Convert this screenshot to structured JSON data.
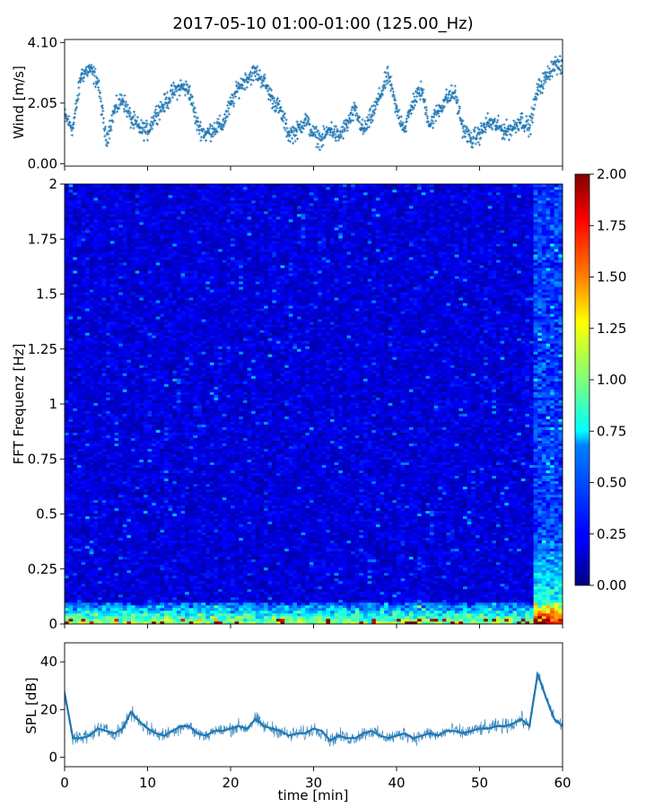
{
  "figure_title": "2017-05-10 01:00-01:00 (125.00_Hz)",
  "colors": {
    "series": "#1f77b4",
    "colormap": "jet",
    "axes": "#000000",
    "background": "#ffffff"
  },
  "chart_data": [
    {
      "type": "scatter",
      "panel": "wind",
      "ylabel": "Wind [m/s]",
      "xlim": [
        0,
        60
      ],
      "ylim": [
        -0.08,
        4.2
      ],
      "yticks": [
        0.0,
        2.05,
        4.1
      ],
      "ytick_labels": [
        "0.00",
        "2.05",
        "4.10"
      ],
      "marker": "+",
      "series": [
        {
          "x": [
            0,
            1,
            2,
            3,
            4,
            5,
            6,
            7,
            8,
            9,
            10,
            11,
            12,
            13,
            14,
            15,
            16,
            17,
            18,
            19,
            20,
            21,
            22,
            23,
            24,
            25,
            26,
            27,
            28,
            29,
            30,
            31,
            32,
            33,
            34,
            35,
            36,
            37,
            38,
            39,
            40,
            41,
            42,
            43,
            44,
            45,
            46,
            47,
            48,
            49,
            50,
            51,
            52,
            53,
            54,
            55,
            56,
            57,
            58,
            59,
            60
          ],
          "values": [
            1.6,
            1.2,
            3.0,
            3.2,
            2.8,
            0.8,
            1.8,
            2.2,
            1.5,
            1.2,
            1.1,
            1.7,
            2.0,
            2.4,
            2.6,
            2.5,
            1.3,
            1.0,
            1.2,
            1.3,
            2.0,
            2.6,
            2.9,
            3.1,
            2.8,
            2.2,
            1.8,
            1.0,
            1.1,
            1.5,
            1.0,
            0.8,
            1.2,
            0.9,
            1.3,
            1.8,
            1.1,
            1.6,
            2.3,
            3.0,
            1.8,
            1.2,
            2.1,
            2.5,
            1.3,
            1.8,
            2.2,
            2.4,
            1.2,
            0.8,
            1.0,
            1.4,
            1.3,
            1.1,
            1.2,
            1.5,
            1.2,
            2.5,
            2.9,
            3.4,
            3.2
          ]
        }
      ]
    },
    {
      "type": "heatmap",
      "panel": "spectrogram",
      "ylabel": "FFT Frequenz [Hz]",
      "xlim": [
        0,
        60
      ],
      "ylim": [
        0,
        2
      ],
      "yticks": [
        0,
        0.25,
        0.5,
        0.75,
        1,
        1.25,
        1.5,
        1.75,
        2
      ],
      "ytick_labels": [
        "0",
        "0.25",
        "0.5",
        "0.75",
        "1",
        "1.25",
        "1.5",
        "1.75",
        "2"
      ],
      "colorbar": {
        "range": [
          0.0,
          2.0
        ],
        "ticks": [
          0.0,
          0.25,
          0.5,
          0.75,
          1.0,
          1.25,
          1.5,
          1.75,
          2.0
        ],
        "tick_labels": [
          "0.00",
          "0.25",
          "0.50",
          "0.75",
          "1.00",
          "1.25",
          "1.50",
          "1.75",
          "2.00"
        ]
      },
      "background_level": 0.18,
      "low_frequency_band_level": 0.7,
      "high_energy_columns_minutes": [
        57,
        58,
        59,
        60
      ]
    },
    {
      "type": "line",
      "panel": "spl",
      "ylabel": "SPL [dB]",
      "xlabel": "time [min]",
      "xlim": [
        0,
        60
      ],
      "ylim": [
        -4,
        48
      ],
      "yticks": [
        0,
        20,
        40
      ],
      "ytick_labels": [
        "0",
        "20",
        "40"
      ],
      "xticks": [
        0,
        10,
        20,
        30,
        40,
        50,
        60
      ],
      "xtick_labels": [
        "0",
        "10",
        "20",
        "30",
        "40",
        "50",
        "60"
      ],
      "series": [
        {
          "x": [
            0,
            1,
            2,
            3,
            4,
            5,
            6,
            7,
            8,
            9,
            10,
            11,
            12,
            13,
            14,
            15,
            16,
            17,
            18,
            19,
            20,
            21,
            22,
            23,
            24,
            25,
            26,
            27,
            28,
            29,
            30,
            31,
            32,
            33,
            34,
            35,
            36,
            37,
            38,
            39,
            40,
            41,
            42,
            43,
            44,
            45,
            46,
            47,
            48,
            49,
            50,
            51,
            52,
            53,
            54,
            55,
            56,
            57,
            58,
            59,
            60
          ],
          "values": [
            27,
            8,
            8,
            9,
            12,
            11,
            10,
            12,
            19,
            15,
            12,
            10,
            9,
            11,
            13,
            13,
            10,
            9,
            11,
            11,
            12,
            13,
            12,
            16,
            13,
            12,
            11,
            9,
            10,
            10,
            12,
            11,
            7,
            9,
            8,
            8,
            10,
            11,
            9,
            8,
            9,
            10,
            8,
            9,
            10,
            9,
            11,
            11,
            10,
            11,
            12,
            12,
            13,
            13,
            14,
            16,
            13,
            35,
            25,
            16,
            13
          ]
        }
      ]
    }
  ]
}
